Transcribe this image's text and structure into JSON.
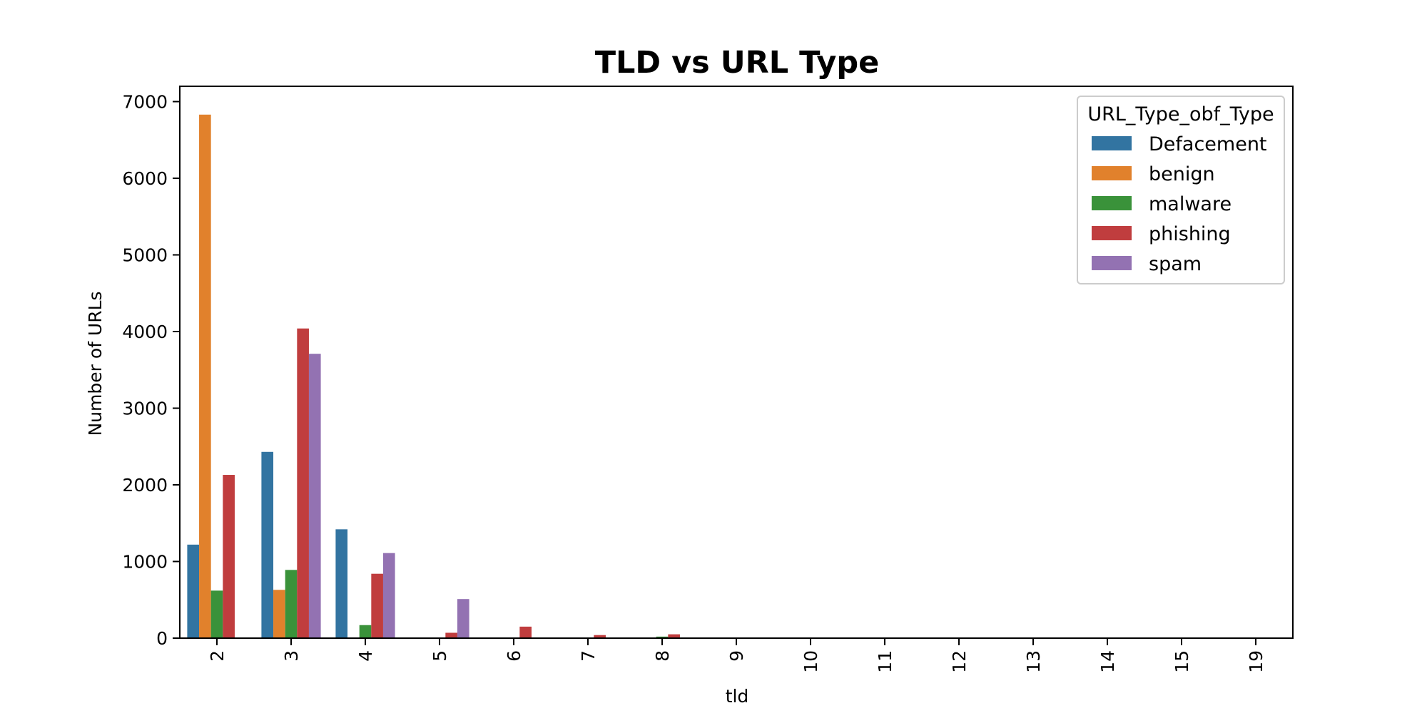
{
  "chart_data": {
    "type": "bar",
    "title": "TLD vs URL Type",
    "xlabel": "tld",
    "ylabel": "Number of URLs",
    "categories": [
      "2",
      "3",
      "4",
      "5",
      "6",
      "7",
      "8",
      "9",
      "10",
      "11",
      "12",
      "13",
      "14",
      "15",
      "19"
    ],
    "ylim": [
      0,
      7200
    ],
    "yticks": [
      "0",
      "1000",
      "2000",
      "3000",
      "4000",
      "5000",
      "6000",
      "7000"
    ],
    "grid": false,
    "legend": {
      "title": "URL_Type_obf_Type",
      "position": "top-right"
    },
    "series": [
      {
        "name": "Defacement",
        "color": "#3274a1",
        "values": [
          1220,
          2430,
          1420,
          0,
          0,
          0,
          0,
          0,
          0,
          0,
          0,
          0,
          0,
          0,
          0
        ]
      },
      {
        "name": "benign",
        "color": "#e1812c",
        "values": [
          6830,
          630,
          0,
          0,
          0,
          0,
          0,
          0,
          0,
          0,
          0,
          0,
          0,
          0,
          0
        ]
      },
      {
        "name": "malware",
        "color": "#3a923a",
        "values": [
          620,
          890,
          170,
          0,
          0,
          0,
          20,
          0,
          0,
          0,
          0,
          0,
          0,
          0,
          0
        ]
      },
      {
        "name": "phishing",
        "color": "#c03d3e",
        "values": [
          2130,
          4040,
          840,
          70,
          150,
          40,
          50,
          5,
          3,
          0,
          0,
          0,
          0,
          0,
          0
        ]
      },
      {
        "name": "spam",
        "color": "#9372b2",
        "values": [
          0,
          3710,
          1110,
          510,
          0,
          0,
          0,
          0,
          0,
          0,
          0,
          0,
          0,
          0,
          0
        ]
      }
    ]
  }
}
